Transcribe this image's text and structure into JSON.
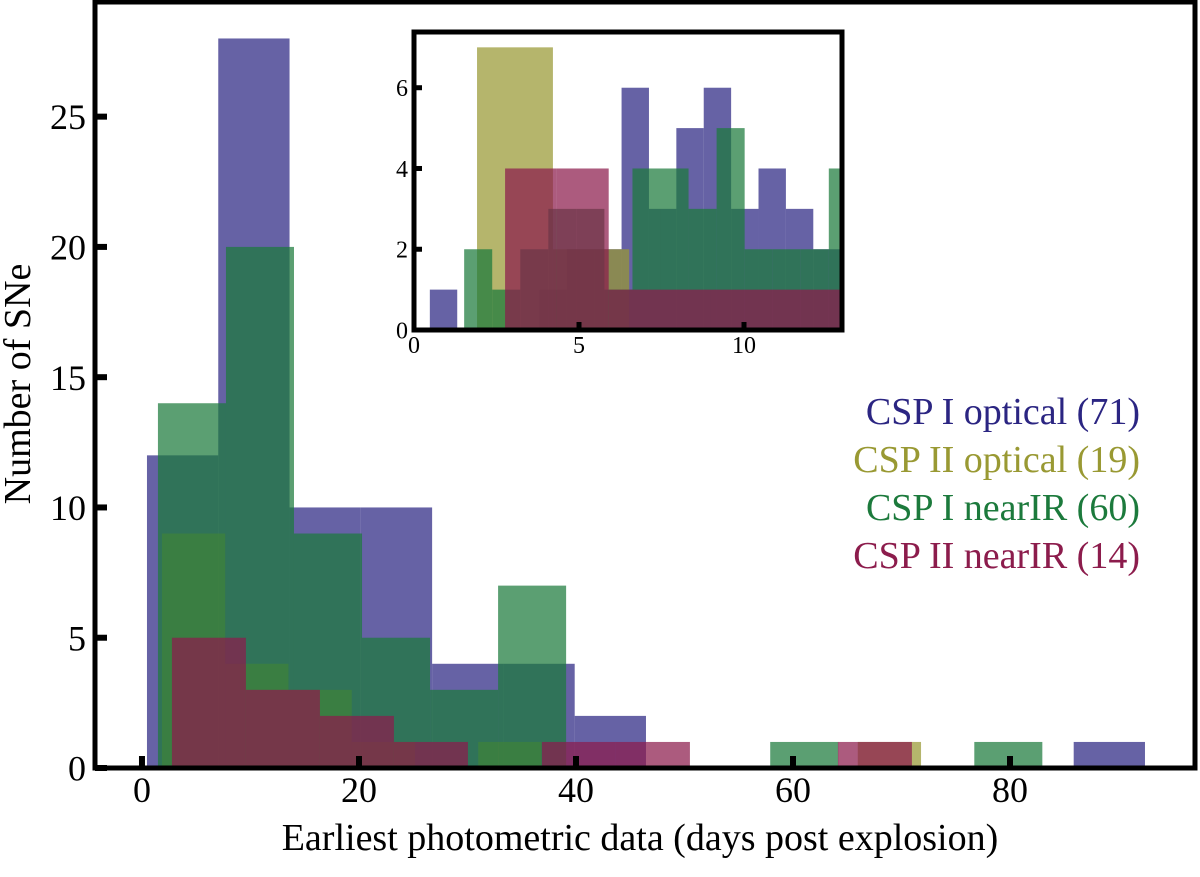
{
  "chart_data": [
    {
      "type": "histogram",
      "xlabel": "Earliest photometric data (days post explosion)",
      "ylabel": "Number of SNe",
      "xlim": [
        -4.33,
        97.05
      ],
      "ylim": [
        0,
        29.4
      ],
      "xticks": [
        0,
        20,
        40,
        60,
        80
      ],
      "yticks": [
        0,
        5,
        10,
        15,
        20,
        25
      ],
      "series": [
        {
          "name": "CSP I optical (71)",
          "color": "#2b2582",
          "bins": [
            0.46,
            7.03,
            13.6,
            20.17,
            26.74,
            33.31,
            39.88,
            46.45,
            53.02,
            59.59,
            66.16,
            72.73,
            79.3,
            85.87,
            92.44
          ],
          "values": [
            12,
            28,
            10,
            10,
            4,
            4,
            2,
            0,
            0,
            0,
            0,
            0,
            0,
            1
          ]
        },
        {
          "name": "CSP II optical (19)",
          "color": "#999933",
          "bins": [
            1.84,
            7.67,
            13.5,
            19.33,
            25.16,
            30.99,
            36.82,
            42.65,
            48.48,
            54.31,
            60.14,
            65.97,
            71.8
          ],
          "values": [
            9,
            4,
            3,
            1,
            0,
            1,
            0,
            0,
            0,
            0,
            0,
            1
          ]
        },
        {
          "name": "CSP I nearIR (60)",
          "color": "#1c7a3c",
          "bins": [
            1.47,
            7.74,
            14.01,
            20.28,
            26.55,
            32.82,
            39.09,
            45.36,
            51.63,
            57.9,
            64.17,
            70.44,
            76.71,
            82.98
          ],
          "values": [
            14,
            20,
            9,
            5,
            3,
            7,
            0,
            0,
            0,
            1,
            0,
            0,
            1
          ]
        },
        {
          "name": "CSP II nearIR (14)",
          "color": "#8c1c4c",
          "bins": [
            2.76,
            9.58,
            16.4,
            23.22,
            30.04,
            36.86,
            43.68,
            50.5,
            57.32,
            64.14,
            70.96
          ],
          "values": [
            5,
            3,
            2,
            1,
            0,
            1,
            1,
            0,
            0,
            1
          ]
        }
      ]
    },
    {
      "type": "histogram",
      "xlim": [
        0,
        12.97
      ],
      "ylim": [
        0,
        7.38
      ],
      "xticks": [
        0,
        5,
        10
      ],
      "yticks": [
        0,
        2,
        4,
        6
      ],
      "series": [
        {
          "color": "#2b2582",
          "bins": [
            0.48,
            1.31,
            2.14,
            2.97,
            3.8,
            4.63,
            5.46,
            6.29,
            7.12,
            7.95,
            8.78,
            9.61,
            10.44,
            11.27,
            12.1,
            12.93
          ],
          "values": [
            1,
            0,
            0,
            0,
            1,
            2,
            2,
            6,
            3,
            5,
            6,
            3,
            4,
            3,
            2
          ]
        },
        {
          "color": "#999933",
          "bins": [
            1.91,
            4.21,
            6.52
          ],
          "values": [
            7,
            2
          ]
        },
        {
          "color": "#1c7a3c",
          "bins": [
            1.52,
            2.37,
            3.22,
            4.07,
            4.92,
            5.77,
            6.62,
            7.47,
            8.32,
            9.17,
            10.02,
            10.87,
            11.72,
            12.57,
            13.42
          ],
          "values": [
            2,
            1,
            2,
            3,
            3,
            1,
            4,
            4,
            3,
            5,
            2,
            2,
            2,
            4
          ]
        },
        {
          "color": "#8c1c4c",
          "bins": [
            2.76,
            4.33,
            5.9,
            9.0,
            12.97
          ],
          "values": [
            4,
            4,
            1,
            1
          ]
        }
      ]
    }
  ]
}
